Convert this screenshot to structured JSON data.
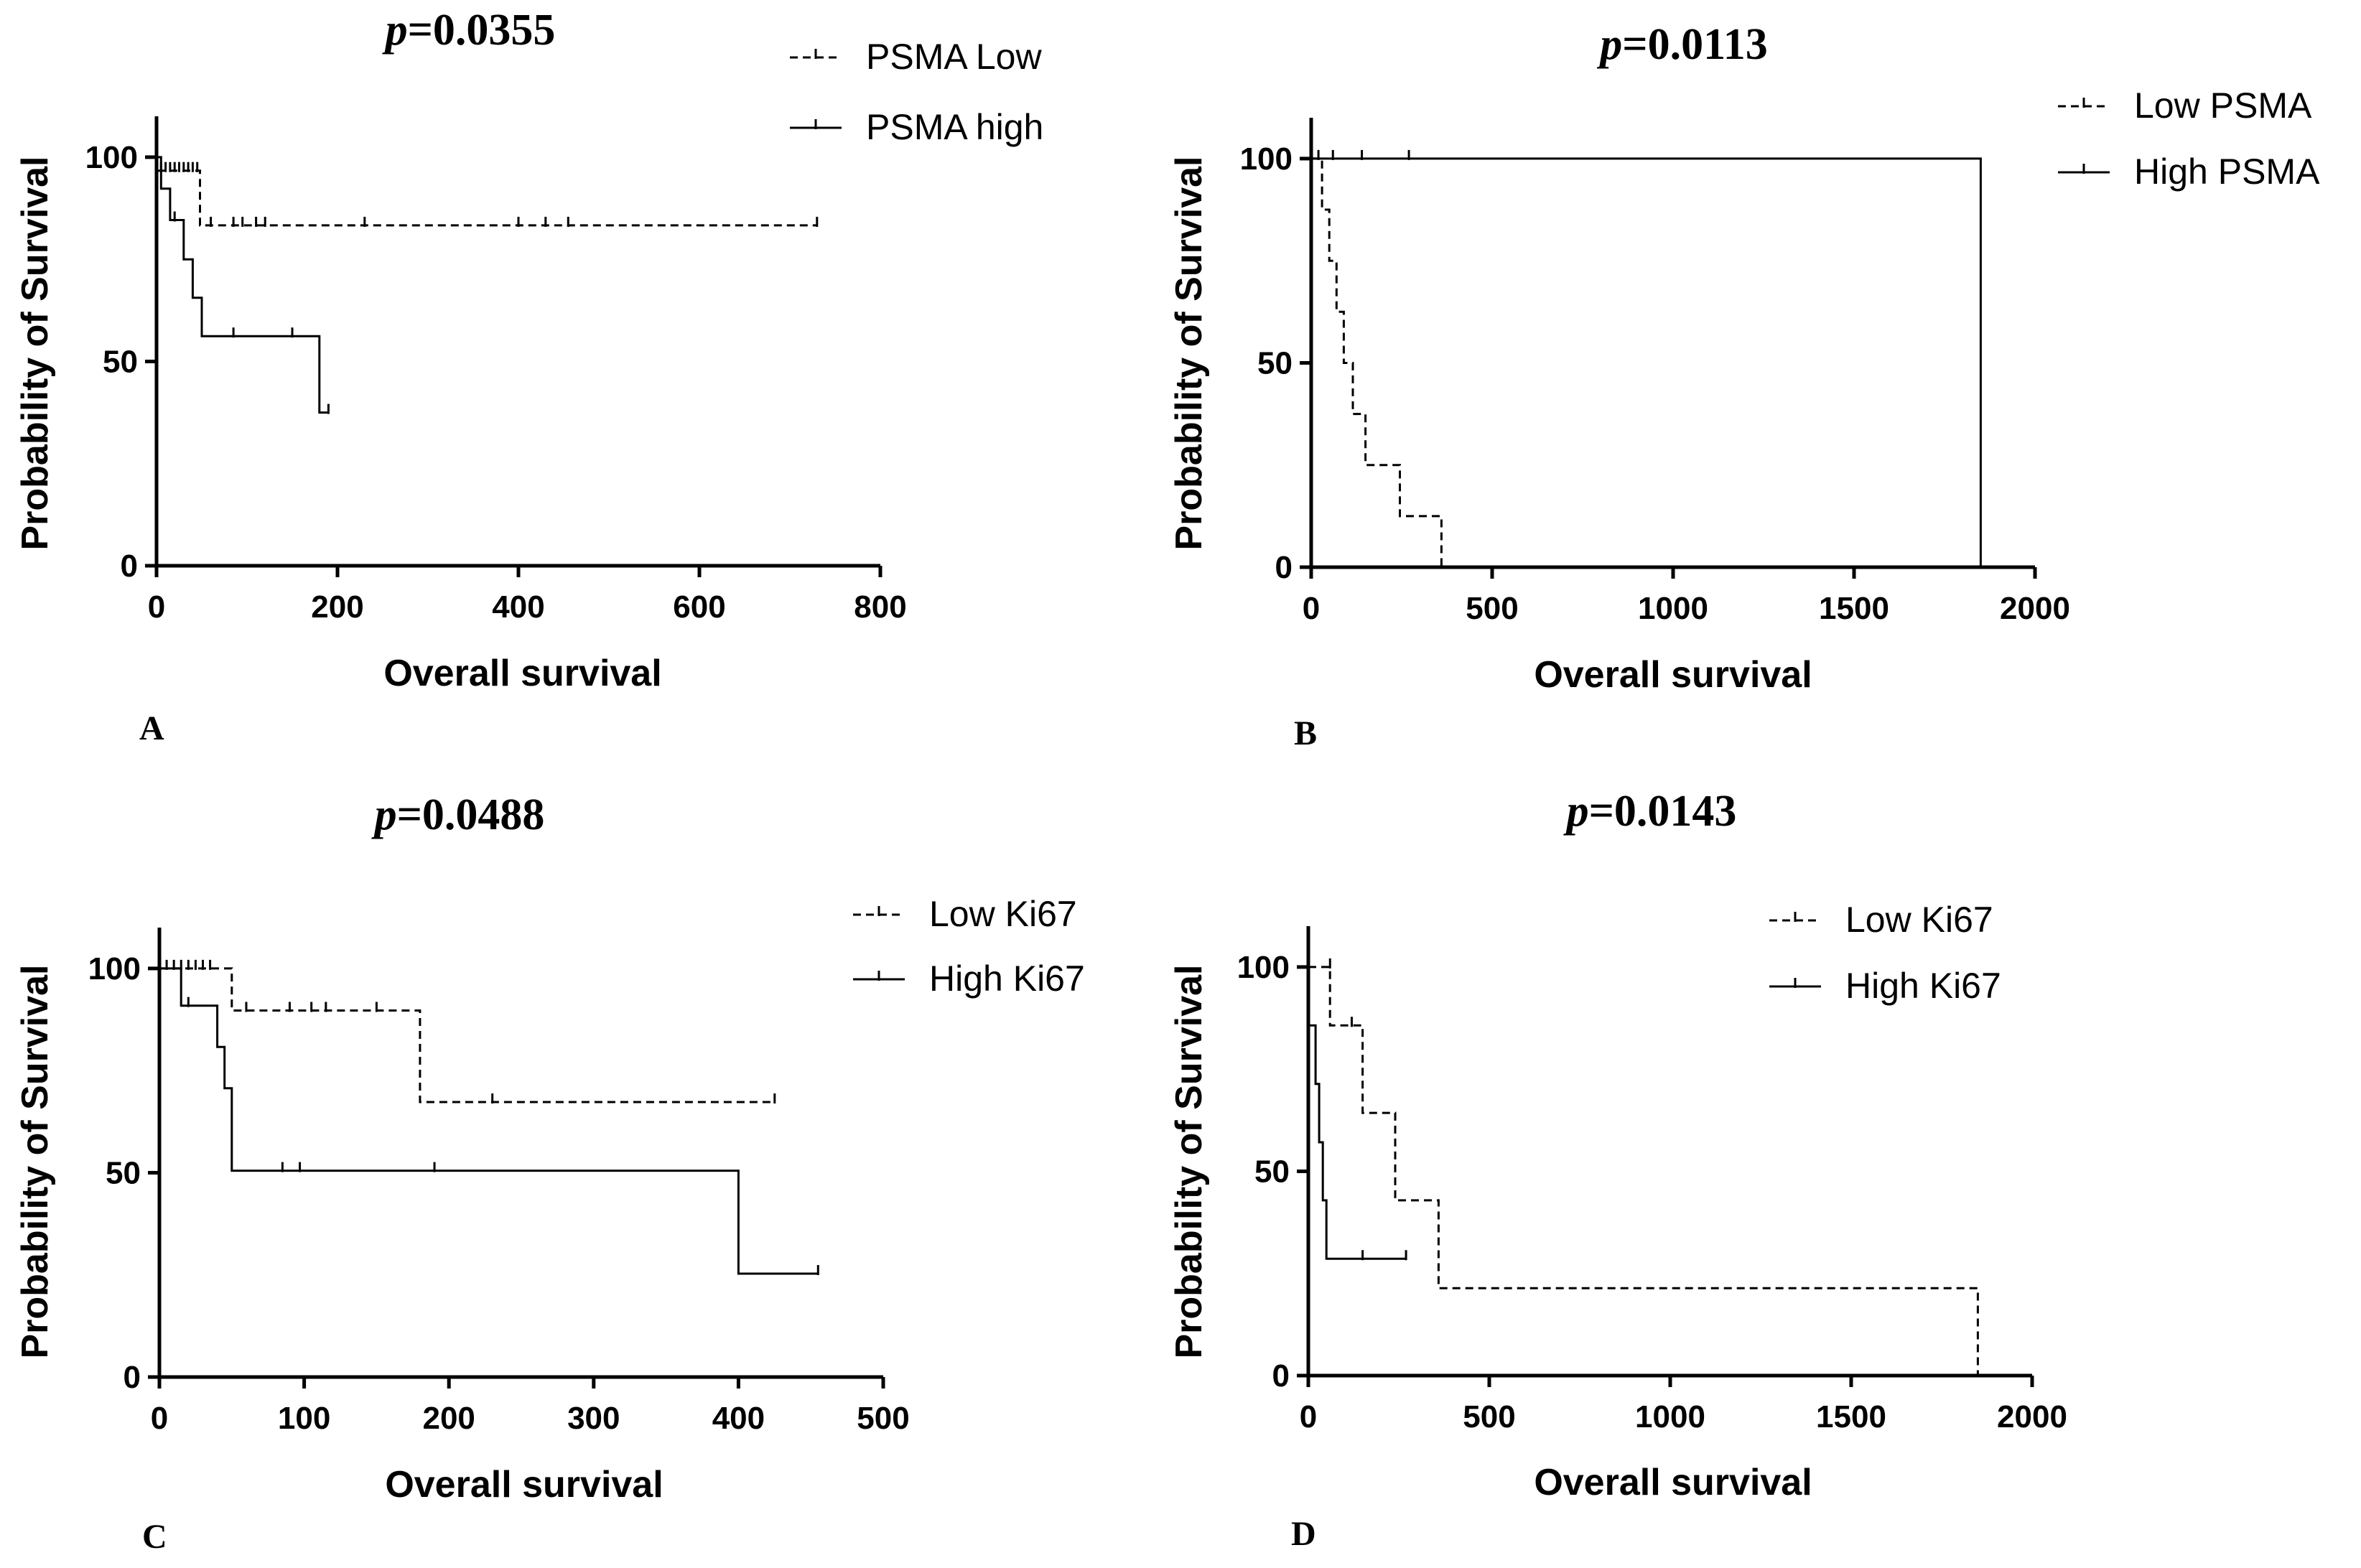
{
  "figure": {
    "panels": [
      "A",
      "B",
      "C",
      "D"
    ]
  },
  "chart_data": [
    {
      "type": "line",
      "panel": "A",
      "p_prefix": "p",
      "p_value": "=0.0355",
      "xlabel": "Overall survival",
      "ylabel": "Probability of Survival",
      "xlim": [
        0,
        800
      ],
      "ylim": [
        0,
        110
      ],
      "xticks": [
        0,
        200,
        400,
        600,
        800
      ],
      "yticks": [
        0,
        50,
        100
      ],
      "legend_position": "top-right",
      "series": [
        {
          "name": "PSMA Low",
          "style": "dashed",
          "x": [
            0,
            48,
            48,
            730
          ],
          "y": [
            96.7,
            96.7,
            83.3,
            83.3
          ],
          "censored_x": [
            5,
            10,
            15,
            20,
            25,
            30,
            35,
            40,
            45,
            60,
            85,
            95,
            110,
            120,
            230,
            400,
            430,
            455,
            730
          ],
          "censored_y": [
            96.7,
            96.7,
            96.7,
            96.7,
            96.7,
            96.7,
            96.7,
            96.7,
            96.7,
            83.3,
            83.3,
            83.3,
            83.3,
            83.3,
            83.3,
            83.3,
            83.3,
            83.3,
            83.3
          ]
        },
        {
          "name": "PSMA high",
          "style": "solid",
          "x": [
            0,
            5,
            5,
            15,
            15,
            30,
            30,
            40,
            40,
            50,
            50,
            180,
            180,
            190
          ],
          "y": [
            100,
            100,
            92.3,
            92.3,
            84.6,
            84.6,
            75,
            75,
            65.6,
            65.6,
            56.2,
            56.2,
            37.5,
            37.5
          ],
          "censored_x": [
            20,
            85,
            150,
            190
          ],
          "censored_y": [
            84.6,
            56.2,
            56.2,
            37.5
          ]
        }
      ]
    },
    {
      "type": "line",
      "panel": "B",
      "p_prefix": "p",
      "p_value": "=0.0113",
      "xlabel": "Overall survival",
      "ylabel": "Probability of Survival",
      "xlim": [
        0,
        2000
      ],
      "ylim": [
        0,
        110
      ],
      "xticks": [
        0,
        500,
        1000,
        1500,
        2000
      ],
      "yticks": [
        0,
        50,
        100
      ],
      "legend_position": "top-right",
      "series": [
        {
          "name": "Low PSMA",
          "style": "dashed",
          "x": [
            0,
            30,
            30,
            50,
            50,
            70,
            70,
            90,
            90,
            115,
            115,
            150,
            150,
            245,
            245,
            360,
            360
          ],
          "y": [
            100,
            100,
            87.5,
            87.5,
            75,
            75,
            62.5,
            62.5,
            50,
            50,
            37.5,
            37.5,
            25,
            25,
            12.5,
            12.5,
            0
          ],
          "censored_x": [],
          "censored_y": []
        },
        {
          "name": "High PSMA",
          "style": "solid",
          "x": [
            0,
            1850,
            1850
          ],
          "y": [
            100,
            100,
            0
          ],
          "censored_x": [
            20,
            60,
            140,
            270
          ],
          "censored_y": [
            100,
            100,
            100,
            100
          ]
        }
      ]
    },
    {
      "type": "line",
      "panel": "C",
      "p_prefix": "p",
      "p_value": "=0.0488",
      "xlabel": "Overall survival",
      "ylabel": "Probability of Survival",
      "xlim": [
        0,
        500
      ],
      "ylim": [
        0,
        110
      ],
      "xticks": [
        0,
        100,
        200,
        300,
        400,
        500
      ],
      "yticks": [
        0,
        50,
        100
      ],
      "legend_position": "top-right",
      "series": [
        {
          "name": "Low Ki67",
          "style": "dashed",
          "x": [
            0,
            50,
            50,
            180,
            180,
            425
          ],
          "y": [
            100,
            100,
            89.7,
            89.7,
            67.3,
            67.3
          ],
          "censored_x": [
            5,
            10,
            15,
            20,
            25,
            30,
            35,
            60,
            90,
            105,
            115,
            150,
            230,
            425
          ],
          "censored_y": [
            100,
            100,
            100,
            100,
            100,
            100,
            100,
            89.7,
            89.7,
            89.7,
            89.7,
            89.7,
            67.3,
            67.3
          ],
          "label_note": ""
        },
        {
          "name": "High Ki67",
          "style": "solid",
          "x": [
            0,
            15,
            15,
            40,
            40,
            45,
            45,
            50,
            50,
            400,
            400,
            455
          ],
          "y": [
            100,
            100,
            90.9,
            90.9,
            80.8,
            80.8,
            70.7,
            70.7,
            50.5,
            50.5,
            25.3,
            25.3
          ],
          "censored_x": [
            20,
            85,
            97,
            190,
            455
          ],
          "censored_y": [
            90.9,
            50.5,
            50.5,
            50.5,
            25.3
          ]
        }
      ]
    },
    {
      "type": "line",
      "panel": "D",
      "p_prefix": "p",
      "p_value": "=0.0143",
      "xlabel": "Overall survival",
      "ylabel": "Probability of Survival",
      "xlim": [
        0,
        2000
      ],
      "ylim": [
        0,
        110
      ],
      "xticks": [
        0,
        500,
        1000,
        1500,
        2000
      ],
      "yticks": [
        0,
        50,
        100
      ],
      "legend_position": "top-right",
      "series": [
        {
          "name": "Low Ki67",
          "style": "dashed",
          "x": [
            0,
            60,
            60,
            150,
            150,
            240,
            240,
            360,
            360,
            1850,
            1850
          ],
          "y": [
            100,
            100,
            85.7,
            85.7,
            64.3,
            64.3,
            42.9,
            42.9,
            21.4,
            21.4,
            0
          ],
          "censored_x": [
            60,
            120
          ],
          "censored_y": [
            100,
            85.7
          ]
        },
        {
          "name": "High Ki67",
          "style": "solid",
          "x": [
            0,
            20,
            20,
            30,
            30,
            40,
            40,
            50,
            50,
            60,
            60,
            270
          ],
          "y": [
            85.7,
            85.7,
            71.4,
            71.4,
            57.1,
            57.1,
            42.9,
            42.9,
            28.6,
            28.6,
            28.6,
            28.6
          ],
          "censored_x": [
            150,
            270
          ],
          "censored_y": [
            28.6,
            28.6
          ]
        }
      ]
    }
  ]
}
